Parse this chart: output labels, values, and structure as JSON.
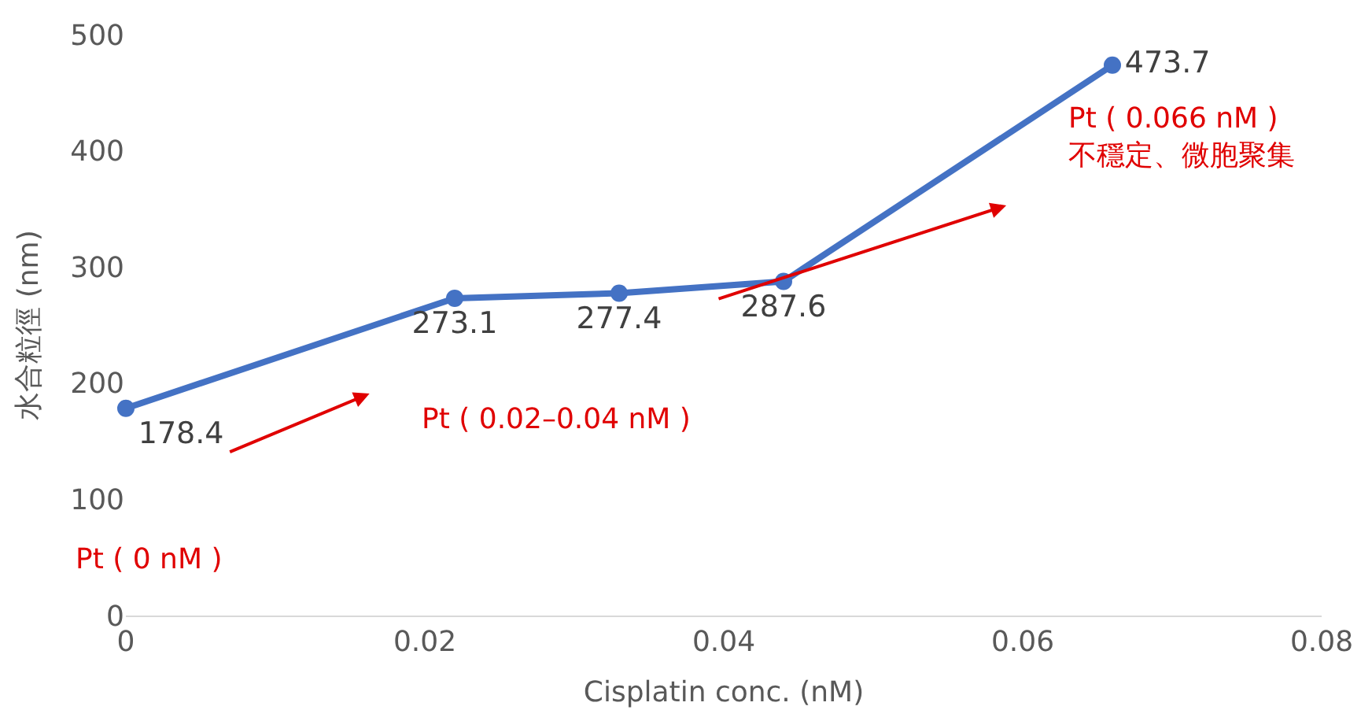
{
  "chart_data": {
    "type": "line",
    "xlabel": "Cisplatin conc. (nM)",
    "ylabel": "水合粒徑 (nm)",
    "x": [
      0,
      0.022,
      0.033,
      0.044,
      0.066
    ],
    "series": [
      {
        "color": "#4472c4",
        "values": [
          178.4,
          273.1,
          277.4,
          287.6,
          473.7
        ]
      }
    ],
    "xlim": [
      0,
      0.08
    ],
    "xticks": [
      0,
      0.02,
      0.04,
      0.06,
      0.08
    ],
    "ylim": [
      0,
      500
    ],
    "yticks": [
      0,
      100,
      200,
      300,
      400,
      500
    ],
    "data_labels": true,
    "marker": "circle",
    "line_style": "solid",
    "legend": false,
    "annotations": [
      "Pt ( 0 nM )",
      "Pt ( 0.02–0.04 nM )",
      "Pt ( 0.066 nM )\n不穩定、微胞聚集"
    ]
  }
}
